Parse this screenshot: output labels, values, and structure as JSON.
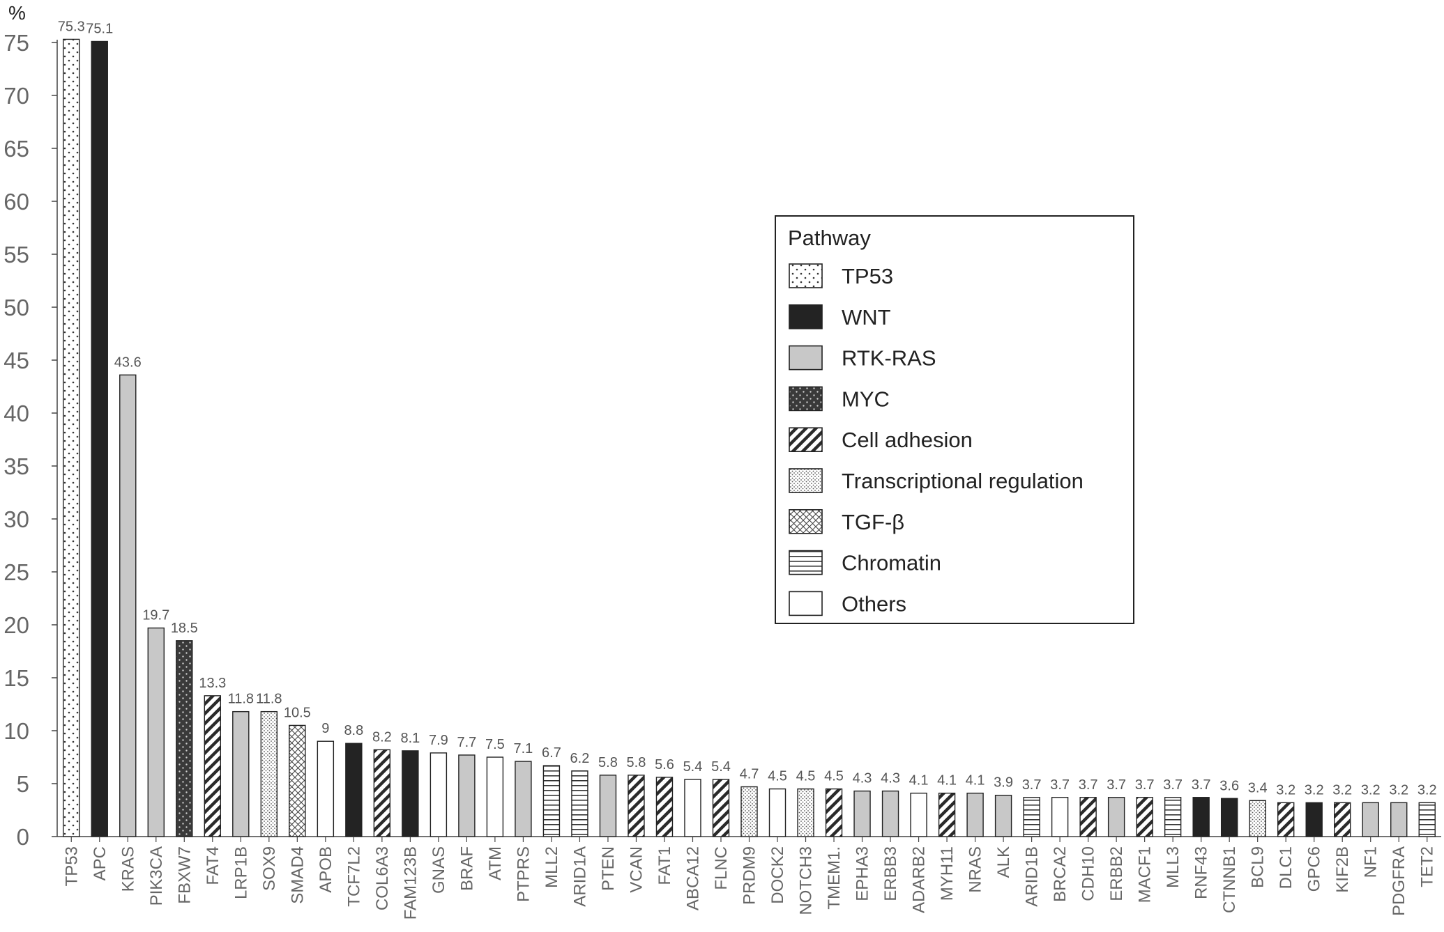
{
  "chart_data": {
    "type": "bar",
    "ylabel": "%",
    "ylim": [
      0,
      75
    ],
    "yticks": [
      "0",
      "5",
      "10",
      "15",
      "20",
      "25",
      "30",
      "35",
      "40",
      "45",
      "50",
      "55",
      "60",
      "65",
      "70",
      "75"
    ],
    "grid": false,
    "legend_position": "right",
    "legend": {
      "title": "Pathway",
      "items": [
        {
          "name": "TP53",
          "pattern": "sparse-dots"
        },
        {
          "name": "WNT",
          "pattern": "solid-black"
        },
        {
          "name": "RTK-RAS",
          "pattern": "solid-gray"
        },
        {
          "name": "MYC",
          "pattern": "dark-dots"
        },
        {
          "name": "Cell adhesion",
          "pattern": "diagonal-stripes"
        },
        {
          "name": "Transcriptional regulation",
          "pattern": "dense-dots"
        },
        {
          "name": "TGF-β",
          "pattern": "crosshatch"
        },
        {
          "name": "Chromatin",
          "pattern": "horizontal-stripes"
        },
        {
          "name": "Others",
          "pattern": "white"
        }
      ]
    },
    "bars": [
      {
        "gene": "TP53",
        "value": 75.3,
        "label": "75.3",
        "pathway": "TP53"
      },
      {
        "gene": "APC",
        "value": 75.1,
        "label": "75.1",
        "pathway": "WNT"
      },
      {
        "gene": "KRAS",
        "value": 43.6,
        "label": "43.6",
        "pathway": "RTK-RAS"
      },
      {
        "gene": "PIK3CA",
        "value": 19.7,
        "label": "19.7",
        "pathway": "RTK-RAS"
      },
      {
        "gene": "FBXW7",
        "value": 18.5,
        "label": "18.5",
        "pathway": "MYC"
      },
      {
        "gene": "FAT4",
        "value": 13.3,
        "label": "13.3",
        "pathway": "Cell adhesion"
      },
      {
        "gene": "LRP1B",
        "value": 11.8,
        "label": "11.8",
        "pathway": "RTK-RAS"
      },
      {
        "gene": "SOX9",
        "value": 11.8,
        "label": "11.8",
        "pathway": "Transcriptional regulation"
      },
      {
        "gene": "SMAD4",
        "value": 10.5,
        "label": "10.5",
        "pathway": "TGF-β"
      },
      {
        "gene": "APOB",
        "value": 9,
        "label": "9",
        "pathway": "Others"
      },
      {
        "gene": "TCF7L2",
        "value": 8.8,
        "label": "8.8",
        "pathway": "WNT"
      },
      {
        "gene": "COL6A3",
        "value": 8.2,
        "label": "8.2",
        "pathway": "Cell adhesion"
      },
      {
        "gene": "FAM123B",
        "value": 8.1,
        "label": "8.1",
        "pathway": "WNT"
      },
      {
        "gene": "GNAS",
        "value": 7.9,
        "label": "7.9",
        "pathway": "Others"
      },
      {
        "gene": "BRAF",
        "value": 7.7,
        "label": "7.7",
        "pathway": "RTK-RAS"
      },
      {
        "gene": "ATM",
        "value": 7.5,
        "label": "7.5",
        "pathway": "Others"
      },
      {
        "gene": "PTPRS",
        "value": 7.1,
        "label": "7.1",
        "pathway": "RTK-RAS"
      },
      {
        "gene": "MLL2",
        "value": 6.7,
        "label": "6.7",
        "pathway": "Chromatin"
      },
      {
        "gene": "ARID1A",
        "value": 6.2,
        "label": "6.2",
        "pathway": "Chromatin"
      },
      {
        "gene": "PTEN",
        "value": 5.8,
        "label": "5.8",
        "pathway": "RTK-RAS"
      },
      {
        "gene": "VCAN",
        "value": 5.8,
        "label": "5.8",
        "pathway": "Cell adhesion"
      },
      {
        "gene": "FAT1",
        "value": 5.6,
        "label": "5.6",
        "pathway": "Cell adhesion"
      },
      {
        "gene": "ABCA12",
        "value": 5.4,
        "label": "5.4",
        "pathway": "Others"
      },
      {
        "gene": "FLNC",
        "value": 5.4,
        "label": "5.4",
        "pathway": "Cell adhesion"
      },
      {
        "gene": "PRDM9",
        "value": 4.7,
        "label": "4.7",
        "pathway": "Transcriptional regulation"
      },
      {
        "gene": "DOCK2",
        "value": 4.5,
        "label": "4.5",
        "pathway": "Others"
      },
      {
        "gene": "NOTCH3",
        "value": 4.5,
        "label": "4.5",
        "pathway": "Transcriptional regulation"
      },
      {
        "gene": "TMEM1.",
        "value": 4.5,
        "label": "4.5",
        "pathway": "Cell adhesion"
      },
      {
        "gene": "EPHA3",
        "value": 4.3,
        "label": "4.3",
        "pathway": "RTK-RAS"
      },
      {
        "gene": "ERBB3",
        "value": 4.3,
        "label": "4.3",
        "pathway": "RTK-RAS"
      },
      {
        "gene": "ADARB2",
        "value": 4.1,
        "label": "4.1",
        "pathway": "Others"
      },
      {
        "gene": "MYH11",
        "value": 4.1,
        "label": "4.1",
        "pathway": "Cell adhesion"
      },
      {
        "gene": "NRAS",
        "value": 4.1,
        "label": "4.1",
        "pathway": "RTK-RAS"
      },
      {
        "gene": "ALK",
        "value": 3.9,
        "label": "3.9",
        "pathway": "RTK-RAS"
      },
      {
        "gene": "ARID1B",
        "value": 3.7,
        "label": "3.7",
        "pathway": "Chromatin"
      },
      {
        "gene": "BRCA2",
        "value": 3.7,
        "label": "3.7",
        "pathway": "Others"
      },
      {
        "gene": "CDH10",
        "value": 3.7,
        "label": "3.7",
        "pathway": "Cell adhesion"
      },
      {
        "gene": "ERBB2",
        "value": 3.7,
        "label": "3.7",
        "pathway": "RTK-RAS"
      },
      {
        "gene": "MACF1",
        "value": 3.7,
        "label": "3.7",
        "pathway": "Cell adhesion"
      },
      {
        "gene": "MLL3",
        "value": 3.7,
        "label": "3.7",
        "pathway": "Chromatin"
      },
      {
        "gene": "RNF43",
        "value": 3.7,
        "label": "3.7",
        "pathway": "WNT"
      },
      {
        "gene": "CTNNB1",
        "value": 3.6,
        "label": "3.6",
        "pathway": "WNT"
      },
      {
        "gene": "BCL9",
        "value": 3.4,
        "label": "3.4",
        "pathway": "Transcriptional regulation"
      },
      {
        "gene": "DLC1",
        "value": 3.2,
        "label": "3.2",
        "pathway": "Cell adhesion"
      },
      {
        "gene": "GPC6",
        "value": 3.2,
        "label": "3.2",
        "pathway": "WNT"
      },
      {
        "gene": "KIF2B",
        "value": 3.2,
        "label": "3.2",
        "pathway": "Cell adhesion"
      },
      {
        "gene": "NF1",
        "value": 3.2,
        "label": "3.2",
        "pathway": "RTK-RAS"
      },
      {
        "gene": "PDGFRA",
        "value": 3.2,
        "label": "3.2",
        "pathway": "RTK-RAS"
      },
      {
        "gene": "TET2",
        "value": 3.2,
        "label": "3.2",
        "pathway": "Chromatin"
      }
    ]
  }
}
